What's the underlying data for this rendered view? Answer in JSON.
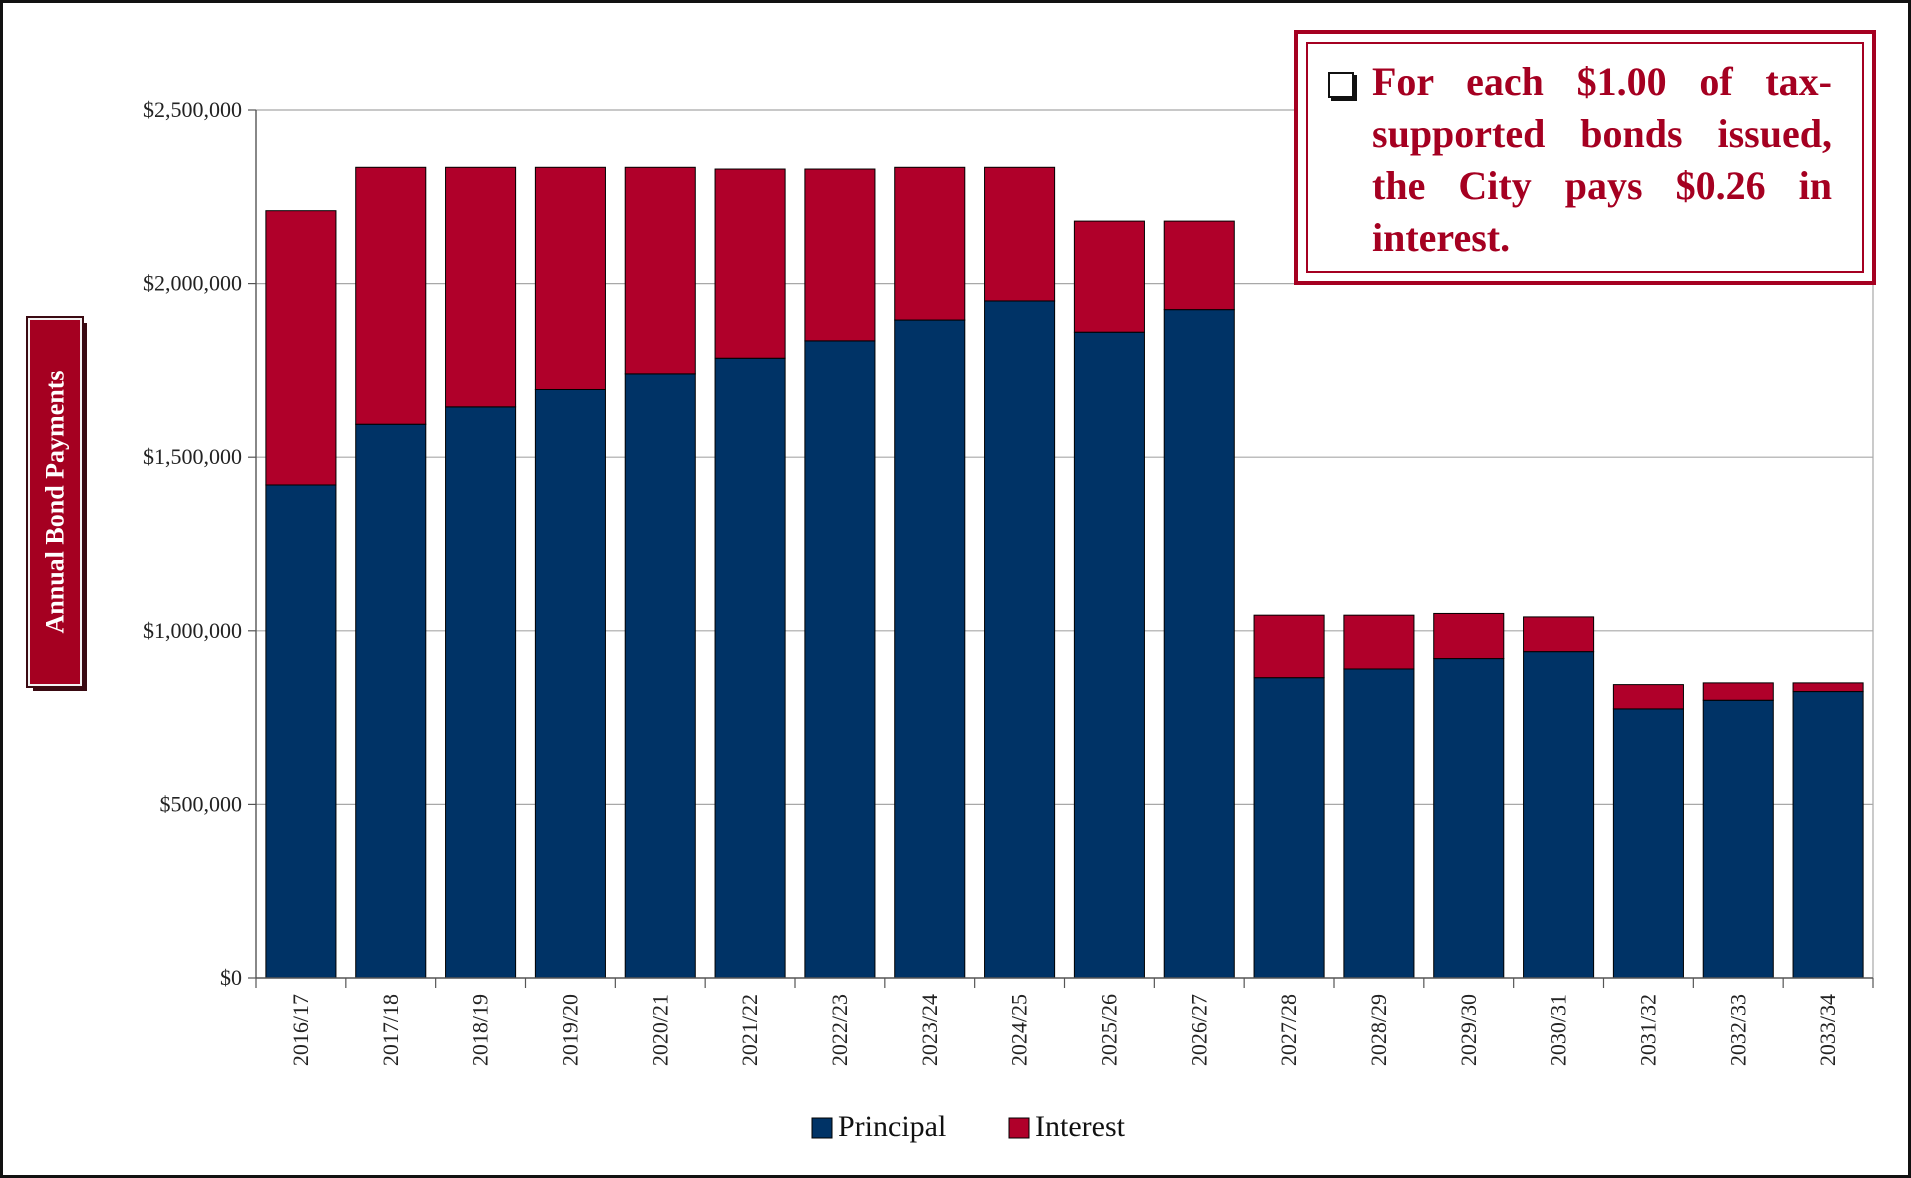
{
  "chart_data": {
    "type": "bar",
    "stacked": true,
    "categories": [
      "2016/17",
      "2017/18",
      "2018/19",
      "2019/20",
      "2020/21",
      "2021/22",
      "2022/23",
      "2023/24",
      "2024/25",
      "2025/26",
      "2026/27",
      "2027/28",
      "2028/29",
      "2029/30",
      "2030/31",
      "2031/32",
      "2032/33",
      "2033/34"
    ],
    "series": [
      {
        "name": "Principal",
        "color": "#003366",
        "values": [
          1420000,
          1595000,
          1645000,
          1695000,
          1740000,
          1785000,
          1835000,
          1895000,
          1950000,
          1860000,
          1925000,
          865000,
          890000,
          920000,
          940000,
          775000,
          800000,
          825000
        ]
      },
      {
        "name": "Interest",
        "color": "#b0002a",
        "values": [
          790000,
          740000,
          690000,
          640000,
          595000,
          545000,
          495000,
          440000,
          385000,
          320000,
          255000,
          180000,
          155000,
          130000,
          100000,
          70000,
          50000,
          25000
        ]
      }
    ],
    "ylabel": "Annual Bond Payments",
    "xlabel": "",
    "ylim": [
      0,
      2500000
    ],
    "y_ticks": [
      "$0",
      "$500,000",
      "$1,000,000",
      "$1,500,000",
      "$2,000,000",
      "$2,500,000"
    ],
    "y_tick_values": [
      0,
      500000,
      1000000,
      1500000,
      2000000,
      2500000
    ],
    "grid": true,
    "legend_position": "bottom-center",
    "annotation": "For each $1.00 of tax-supported bonds issued, the City pays $0.26 in interest."
  }
}
